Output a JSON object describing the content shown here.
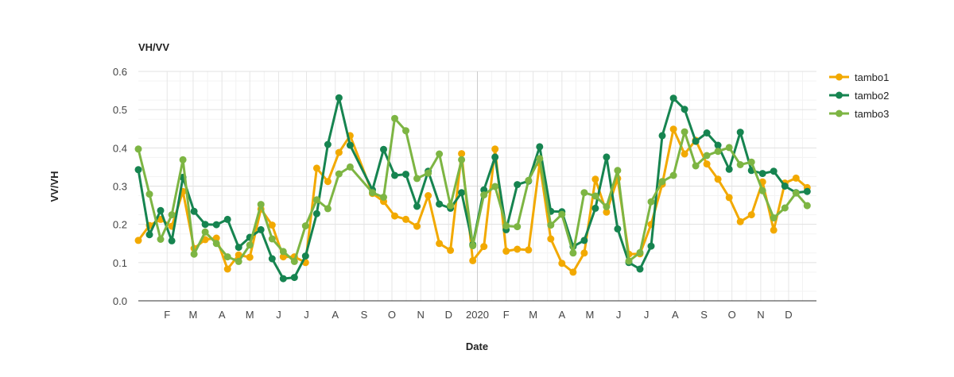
{
  "chart_data": {
    "type": "line",
    "title": "VH/VV",
    "xlabel": "Date",
    "ylabel": "VV/VH",
    "ylim": [
      0,
      0.6
    ],
    "yticks": [
      "0.0",
      "0.1",
      "0.2",
      "0.3",
      "0.4",
      "0.5",
      "0.6"
    ],
    "xlim": [
      "2019-01-01",
      "2020-12-31"
    ],
    "xticks": [
      {
        "label": "F",
        "date": "2019-02-01"
      },
      {
        "label": "M",
        "date": "2019-03-01"
      },
      {
        "label": "A",
        "date": "2019-04-01"
      },
      {
        "label": "M",
        "date": "2019-05-01"
      },
      {
        "label": "J",
        "date": "2019-06-01"
      },
      {
        "label": "J",
        "date": "2019-07-01"
      },
      {
        "label": "A",
        "date": "2019-08-01"
      },
      {
        "label": "S",
        "date": "2019-09-01"
      },
      {
        "label": "O",
        "date": "2019-10-01"
      },
      {
        "label": "N",
        "date": "2019-11-01"
      },
      {
        "label": "D",
        "date": "2019-12-01"
      },
      {
        "label": "2020",
        "date": "2020-01-01"
      },
      {
        "label": "F",
        "date": "2020-02-01"
      },
      {
        "label": "M",
        "date": "2020-03-01"
      },
      {
        "label": "A",
        "date": "2020-04-01"
      },
      {
        "label": "M",
        "date": "2020-05-01"
      },
      {
        "label": "J",
        "date": "2020-06-01"
      },
      {
        "label": "J",
        "date": "2020-07-01"
      },
      {
        "label": "A",
        "date": "2020-08-01"
      },
      {
        "label": "S",
        "date": "2020-09-01"
      },
      {
        "label": "O",
        "date": "2020-10-01"
      },
      {
        "label": "N",
        "date": "2020-11-01"
      },
      {
        "label": "D",
        "date": "2020-12-01"
      }
    ],
    "grid": true,
    "legend_position": "right",
    "series": [
      {
        "name": "tambo1",
        "color": "#F2A900",
        "points": [
          [
            "2019-01-01",
            0.158
          ],
          [
            "2019-01-13",
            0.197
          ],
          [
            "2019-01-25",
            0.213
          ],
          [
            "2019-02-06",
            0.195
          ],
          [
            "2019-02-18",
            0.286
          ],
          [
            "2019-03-02",
            0.137
          ],
          [
            "2019-03-14",
            0.16
          ],
          [
            "2019-03-26",
            0.164
          ],
          [
            "2019-04-07",
            0.083
          ],
          [
            "2019-04-19",
            0.12
          ],
          [
            "2019-05-01",
            0.114
          ],
          [
            "2019-05-13",
            0.24
          ],
          [
            "2019-05-25",
            0.198
          ],
          [
            "2019-06-06",
            0.115
          ],
          [
            "2019-06-18",
            0.115
          ],
          [
            "2019-06-30",
            0.1
          ],
          [
            "2019-07-12",
            0.347
          ],
          [
            "2019-07-24",
            0.312
          ],
          [
            "2019-08-05",
            0.388
          ],
          [
            "2019-08-17",
            0.432
          ],
          [
            "2019-09-10",
            0.281
          ],
          [
            "2019-09-22",
            0.26
          ],
          [
            "2019-10-04",
            0.222
          ],
          [
            "2019-10-16",
            0.213
          ],
          [
            "2019-10-28",
            0.195
          ],
          [
            "2019-11-09",
            0.275
          ],
          [
            "2019-11-21",
            0.15
          ],
          [
            "2019-12-03",
            0.132
          ],
          [
            "2019-12-15",
            0.385
          ],
          [
            "2019-12-27",
            0.105
          ],
          [
            "2020-01-08",
            0.142
          ],
          [
            "2020-01-20",
            0.397
          ],
          [
            "2020-02-01",
            0.13
          ],
          [
            "2020-02-13",
            0.135
          ],
          [
            "2020-02-25",
            0.133
          ],
          [
            "2020-03-08",
            0.36
          ],
          [
            "2020-03-20",
            0.162
          ],
          [
            "2020-04-01",
            0.098
          ],
          [
            "2020-04-13",
            0.075
          ],
          [
            "2020-04-25",
            0.125
          ],
          [
            "2020-05-07",
            0.318
          ],
          [
            "2020-05-19",
            0.232
          ],
          [
            "2020-05-31",
            0.32
          ],
          [
            "2020-06-12",
            0.122
          ],
          [
            "2020-06-24",
            0.123
          ],
          [
            "2020-07-06",
            0.2
          ],
          [
            "2020-07-18",
            0.305
          ],
          [
            "2020-07-30",
            0.449
          ],
          [
            "2020-08-11",
            0.384
          ],
          [
            "2020-08-23",
            0.42
          ],
          [
            "2020-09-04",
            0.358
          ],
          [
            "2020-09-16",
            0.318
          ],
          [
            "2020-09-28",
            0.27
          ],
          [
            "2020-10-10",
            0.207
          ],
          [
            "2020-10-22",
            0.225
          ],
          [
            "2020-11-03",
            0.311
          ],
          [
            "2020-11-15",
            0.185
          ],
          [
            "2020-11-27",
            0.308
          ],
          [
            "2020-12-09",
            0.321
          ],
          [
            "2020-12-21",
            0.296
          ]
        ]
      },
      {
        "name": "tambo2",
        "color": "#168450",
        "points": [
          [
            "2019-01-01",
            0.343
          ],
          [
            "2019-01-13",
            0.173
          ],
          [
            "2019-01-25",
            0.236
          ],
          [
            "2019-02-06",
            0.157
          ],
          [
            "2019-02-18",
            0.323
          ],
          [
            "2019-03-02",
            0.234
          ],
          [
            "2019-03-14",
            0.2
          ],
          [
            "2019-03-26",
            0.199
          ],
          [
            "2019-04-07",
            0.213
          ],
          [
            "2019-04-19",
            0.14
          ],
          [
            "2019-05-01",
            0.166
          ],
          [
            "2019-05-13",
            0.186
          ],
          [
            "2019-05-25",
            0.11
          ],
          [
            "2019-06-06",
            0.058
          ],
          [
            "2019-06-18",
            0.061
          ],
          [
            "2019-06-30",
            0.117
          ],
          [
            "2019-07-12",
            0.228
          ],
          [
            "2019-07-24",
            0.409
          ],
          [
            "2019-08-05",
            0.531
          ],
          [
            "2019-08-17",
            0.407
          ],
          [
            "2019-09-10",
            0.29
          ],
          [
            "2019-09-22",
            0.396
          ],
          [
            "2019-10-04",
            0.328
          ],
          [
            "2019-10-16",
            0.331
          ],
          [
            "2019-10-28",
            0.247
          ],
          [
            "2019-11-09",
            0.339
          ],
          [
            "2019-11-21",
            0.253
          ],
          [
            "2019-12-03",
            0.242
          ],
          [
            "2019-12-15",
            0.283
          ],
          [
            "2019-12-27",
            0.147
          ],
          [
            "2020-01-08",
            0.29
          ],
          [
            "2020-01-20",
            0.376
          ],
          [
            "2020-02-01",
            0.186
          ],
          [
            "2020-02-13",
            0.304
          ],
          [
            "2020-02-25",
            0.313
          ],
          [
            "2020-03-08",
            0.403
          ],
          [
            "2020-03-20",
            0.234
          ],
          [
            "2020-04-01",
            0.233
          ],
          [
            "2020-04-13",
            0.142
          ],
          [
            "2020-04-25",
            0.158
          ],
          [
            "2020-05-07",
            0.242
          ],
          [
            "2020-05-19",
            0.376
          ],
          [
            "2020-05-31",
            0.188
          ],
          [
            "2020-06-12",
            0.1
          ],
          [
            "2020-06-24",
            0.083
          ],
          [
            "2020-07-06",
            0.143
          ],
          [
            "2020-07-18",
            0.432
          ],
          [
            "2020-07-30",
            0.53
          ],
          [
            "2020-08-11",
            0.501
          ],
          [
            "2020-08-23",
            0.417
          ],
          [
            "2020-09-04",
            0.439
          ],
          [
            "2020-09-16",
            0.407
          ],
          [
            "2020-09-28",
            0.344
          ],
          [
            "2020-10-10",
            0.441
          ],
          [
            "2020-10-22",
            0.341
          ],
          [
            "2020-11-03",
            0.333
          ],
          [
            "2020-11-15",
            0.339
          ],
          [
            "2020-11-27",
            0.3
          ],
          [
            "2020-12-09",
            0.283
          ],
          [
            "2020-12-21",
            0.286
          ]
        ]
      },
      {
        "name": "tambo3",
        "color": "#7DB543",
        "points": [
          [
            "2019-01-01",
            0.397
          ],
          [
            "2019-01-13",
            0.279
          ],
          [
            "2019-01-25",
            0.161
          ],
          [
            "2019-02-06",
            0.225
          ],
          [
            "2019-02-18",
            0.369
          ],
          [
            "2019-03-02",
            0.122
          ],
          [
            "2019-03-14",
            0.18
          ],
          [
            "2019-03-26",
            0.15
          ],
          [
            "2019-04-07",
            0.115
          ],
          [
            "2019-04-19",
            0.103
          ],
          [
            "2019-05-01",
            0.146
          ],
          [
            "2019-05-13",
            0.252
          ],
          [
            "2019-05-25",
            0.162
          ],
          [
            "2019-06-06",
            0.129
          ],
          [
            "2019-06-18",
            0.103
          ],
          [
            "2019-06-30",
            0.196
          ],
          [
            "2019-07-12",
            0.264
          ],
          [
            "2019-07-24",
            0.241
          ],
          [
            "2019-08-05",
            0.332
          ],
          [
            "2019-08-17",
            0.35
          ],
          [
            "2019-09-10",
            0.283
          ],
          [
            "2019-09-22",
            0.271
          ],
          [
            "2019-10-04",
            0.477
          ],
          [
            "2019-10-16",
            0.445
          ],
          [
            "2019-10-28",
            0.32
          ],
          [
            "2019-11-09",
            0.334
          ],
          [
            "2019-11-21",
            0.384
          ],
          [
            "2019-12-03",
            0.249
          ],
          [
            "2019-12-15",
            0.369
          ],
          [
            "2019-12-27",
            0.144
          ],
          [
            "2020-01-08",
            0.277
          ],
          [
            "2020-01-20",
            0.299
          ],
          [
            "2020-02-01",
            0.196
          ],
          [
            "2020-02-13",
            0.194
          ],
          [
            "2020-02-25",
            0.315
          ],
          [
            "2020-03-08",
            0.372
          ],
          [
            "2020-03-20",
            0.198
          ],
          [
            "2020-04-01",
            0.226
          ],
          [
            "2020-04-13",
            0.125
          ],
          [
            "2020-04-25",
            0.283
          ],
          [
            "2020-05-07",
            0.274
          ],
          [
            "2020-05-19",
            0.246
          ],
          [
            "2020-05-31",
            0.341
          ],
          [
            "2020-06-12",
            0.104
          ],
          [
            "2020-06-24",
            0.126
          ],
          [
            "2020-07-06",
            0.259
          ],
          [
            "2020-07-18",
            0.312
          ],
          [
            "2020-07-30",
            0.328
          ],
          [
            "2020-08-11",
            0.442
          ],
          [
            "2020-08-23",
            0.353
          ],
          [
            "2020-09-04",
            0.38
          ],
          [
            "2020-09-16",
            0.391
          ],
          [
            "2020-09-28",
            0.401
          ],
          [
            "2020-10-10",
            0.356
          ],
          [
            "2020-10-22",
            0.363
          ],
          [
            "2020-11-03",
            0.288
          ],
          [
            "2020-11-15",
            0.217
          ],
          [
            "2020-11-27",
            0.243
          ],
          [
            "2020-12-09",
            0.282
          ],
          [
            "2020-12-21",
            0.249
          ]
        ]
      }
    ]
  }
}
